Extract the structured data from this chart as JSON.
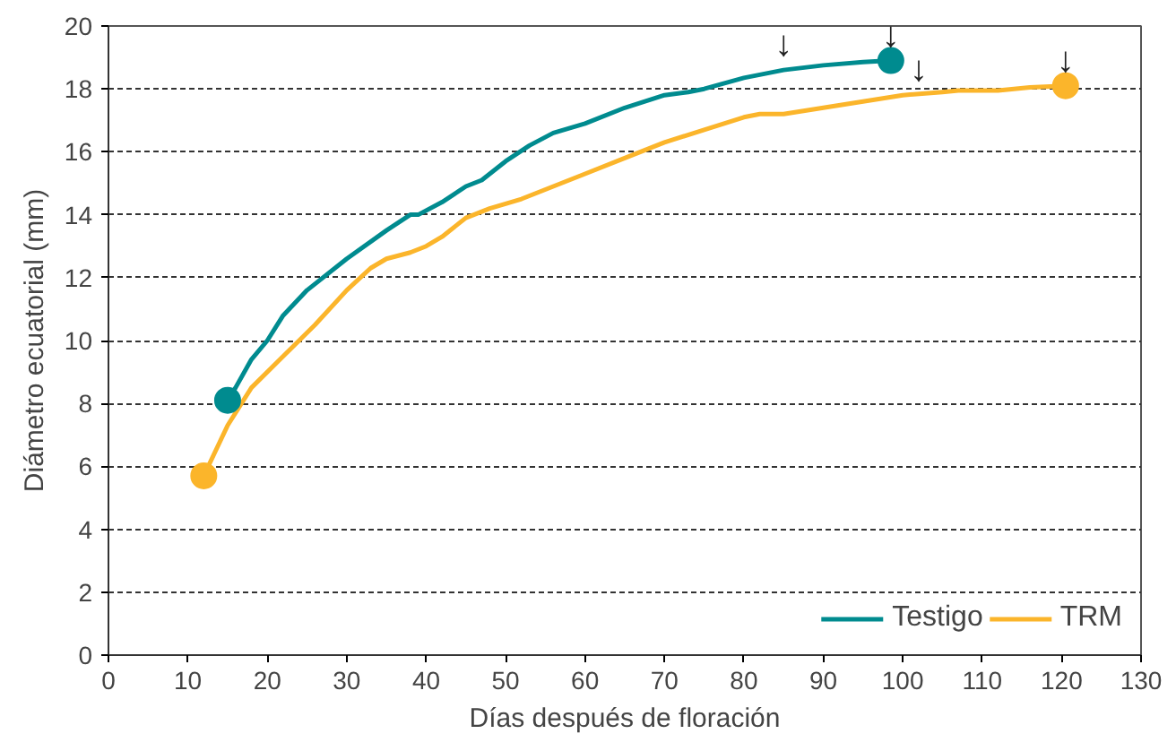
{
  "chart_data": {
    "type": "line",
    "xlabel": "Días después de floración",
    "ylabel": "Diámetro ecuatorial (mm)",
    "xlim": [
      0,
      130
    ],
    "ylim": [
      0,
      20
    ],
    "xticks": [
      0,
      10,
      20,
      30,
      40,
      50,
      60,
      70,
      80,
      90,
      100,
      110,
      120,
      130
    ],
    "yticks": [
      0,
      2,
      4,
      6,
      8,
      10,
      12,
      14,
      16,
      18,
      20
    ],
    "grid": "y",
    "legend": "bottom right",
    "line_style": "solid",
    "series": [
      {
        "name": "Testigo",
        "color": "#008b8f",
        "x": [
          15,
          16,
          18,
          20,
          22,
          25,
          30,
          35,
          38,
          39,
          42,
          45,
          47,
          50,
          53,
          56,
          60,
          65,
          70,
          73,
          75,
          80,
          85,
          90,
          95,
          98.5
        ],
        "values": [
          8.1,
          8.5,
          9.4,
          10.0,
          10.8,
          11.6,
          12.6,
          13.5,
          14.0,
          14.0,
          14.4,
          14.9,
          15.1,
          15.7,
          16.2,
          16.6,
          16.9,
          17.4,
          17.8,
          17.9,
          18.0,
          18.35,
          18.6,
          18.75,
          18.85,
          18.9
        ]
      },
      {
        "name": "TRM",
        "color": "#fbb52b",
        "x": [
          12,
          15,
          18,
          22,
          26,
          30,
          33,
          35,
          38,
          40,
          42,
          45,
          48,
          52,
          55,
          60,
          65,
          70,
          75,
          80,
          82,
          85,
          90,
          95,
          100,
          105,
          107,
          112,
          116,
          120.5
        ],
        "values": [
          5.7,
          7.3,
          8.5,
          9.5,
          10.5,
          11.6,
          12.3,
          12.6,
          12.8,
          13.0,
          13.3,
          13.9,
          14.2,
          14.5,
          14.8,
          15.3,
          15.8,
          16.3,
          16.7,
          17.1,
          17.2,
          17.2,
          17.4,
          17.6,
          17.8,
          17.9,
          17.95,
          17.95,
          18.05,
          18.1
        ]
      },
      {
        "type": "scatter",
        "color": "#008b8f",
        "x": [
          15,
          98.5
        ],
        "values": [
          8.1,
          18.9
        ]
      },
      {
        "type": "scatter",
        "color": "#fbb52b",
        "x": [
          12,
          120.5
        ],
        "values": [
          5.7,
          18.1
        ]
      }
    ],
    "annotations": [
      {
        "text": "↓",
        "x": 85,
        "y": 18.6
      },
      {
        "text": "↓",
        "x": 98.5,
        "y": 18.9
      },
      {
        "text": "↓",
        "x": 102,
        "y": 17.8
      },
      {
        "text": "↓",
        "x": 120.5,
        "y": 18.1
      }
    ]
  }
}
